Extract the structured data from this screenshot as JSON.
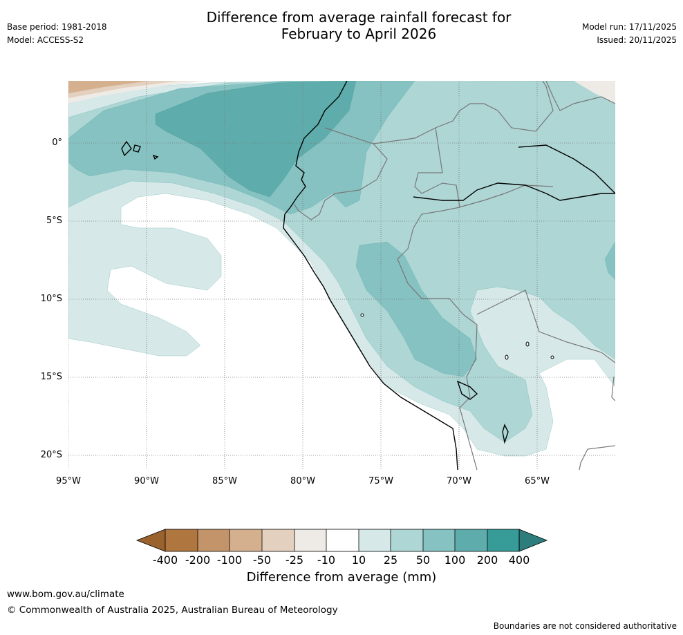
{
  "header": {
    "base_period": "Base period: 1981-2018",
    "model": "Model: ACCESS-S2",
    "title_line1": "Difference from average rainfall forecast for",
    "title_line2": "February to April 2026",
    "model_run": "Model run: 17/11/2025",
    "issued": "Issued: 20/11/2025"
  },
  "map": {
    "lat_labels": [
      "0°",
      "5°S",
      "10°S",
      "15°S",
      "20°S"
    ],
    "lon_labels": [
      "95°W",
      "90°W",
      "85°W",
      "80°W",
      "75°W",
      "70°W",
      "65°W"
    ]
  },
  "legend": {
    "title": "Difference from average (mm)",
    "tick_labels": [
      "-400",
      "-200",
      "-100",
      "-50",
      "-25",
      "-10",
      "10",
      "25",
      "50",
      "100",
      "200",
      "400"
    ],
    "colors": [
      "#9a622c",
      "#b07640",
      "#c3946a",
      "#d4b08f",
      "#e4d0be",
      "#eeebe6",
      "#ffffff",
      "#d6e9e8",
      "#aed6d5",
      "#86c2c1",
      "#5eadac",
      "#379b98",
      "#2c7d7b"
    ]
  },
  "footer": {
    "website": "www.bom.gov.au/climate",
    "copyright": "© Commonwealth of Australia 2025, Australian Bureau of Meteorology",
    "disclaimer": "Boundaries are not considered authoritative"
  }
}
